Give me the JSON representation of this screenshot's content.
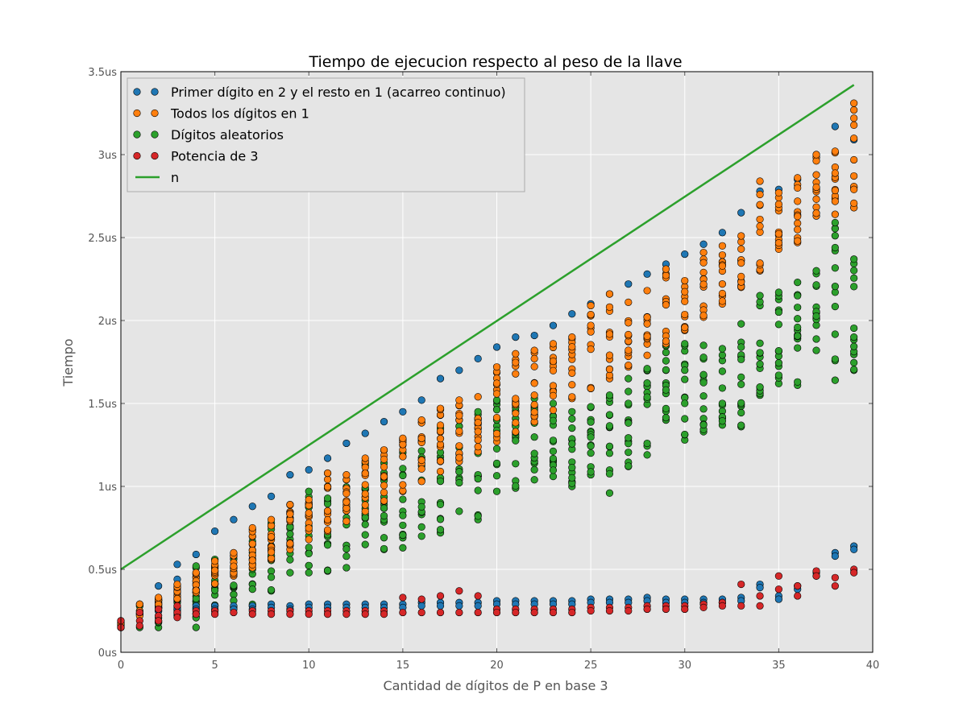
{
  "chart_data": {
    "type": "scatter",
    "title": "Tiempo de ejecucion respecto al peso de la llave",
    "xlabel": "Cantidad de dígitos de P en base 3",
    "ylabel": "Tiempo",
    "xlim": [
      0,
      40
    ],
    "ylim": [
      0,
      3.5
    ],
    "x_ticks": [
      0,
      5,
      10,
      15,
      20,
      25,
      30,
      35,
      40
    ],
    "x_tick_labels": [
      "0",
      "5",
      "10",
      "15",
      "20",
      "25",
      "30",
      "35",
      "40"
    ],
    "y_ticks": [
      0,
      0.5,
      1,
      1.5,
      2,
      2.5,
      3,
      3.5
    ],
    "y_tick_labels": [
      "0us",
      "0.5us",
      "1us",
      "1.5us",
      "2us",
      "2.5us",
      "3us",
      "3.5us"
    ],
    "grid": true,
    "legend_position": "top-left",
    "background_color": "#e5e5e5",
    "series": [
      {
        "name": "Primer dígito en 2 y el resto en 1 (acarreo continuo)",
        "color": "#1f77b4",
        "marker": "circle",
        "upper_points": [
          [
            0,
            0.18
          ],
          [
            1,
            0.29
          ],
          [
            2,
            0.4
          ],
          [
            3,
            0.44
          ],
          [
            3,
            0.53
          ],
          [
            4,
            0.59
          ],
          [
            5,
            0.73
          ],
          [
            6,
            0.8
          ],
          [
            7,
            0.88
          ],
          [
            8,
            0.94
          ],
          [
            9,
            1.07
          ],
          [
            10,
            1.1
          ],
          [
            11,
            1.17
          ],
          [
            12,
            1.26
          ],
          [
            13,
            1.32
          ],
          [
            14,
            1.39
          ],
          [
            15,
            1.45
          ],
          [
            16,
            1.52
          ],
          [
            17,
            1.65
          ],
          [
            18,
            1.7
          ],
          [
            19,
            1.77
          ],
          [
            20,
            1.84
          ],
          [
            21,
            1.9
          ],
          [
            22,
            1.91
          ],
          [
            23,
            1.97
          ],
          [
            24,
            2.04
          ],
          [
            25,
            2.1
          ],
          [
            26,
            2.16
          ],
          [
            27,
            2.22
          ],
          [
            28,
            2.28
          ],
          [
            29,
            2.34
          ],
          [
            30,
            2.4
          ],
          [
            31,
            2.46
          ],
          [
            32,
            2.53
          ],
          [
            33,
            2.65
          ],
          [
            34,
            2.78
          ],
          [
            35,
            2.79
          ],
          [
            36,
            2.85
          ],
          [
            37,
            3.0
          ],
          [
            38,
            3.17
          ],
          [
            39,
            3.09
          ],
          [
            39,
            2.68
          ]
        ],
        "lower_points": [
          [
            0,
            0.17
          ],
          [
            1,
            0.25
          ],
          [
            2,
            0.27
          ],
          [
            3,
            0.28
          ],
          [
            4,
            0.28
          ],
          [
            5,
            0.28
          ],
          [
            6,
            0.28
          ],
          [
            7,
            0.28
          ],
          [
            8,
            0.29
          ],
          [
            9,
            0.28
          ],
          [
            10,
            0.29
          ],
          [
            11,
            0.29
          ],
          [
            12,
            0.29
          ],
          [
            13,
            0.29
          ],
          [
            14,
            0.29
          ],
          [
            15,
            0.29
          ],
          [
            16,
            0.3
          ],
          [
            17,
            0.3
          ],
          [
            18,
            0.3
          ],
          [
            19,
            0.3
          ],
          [
            20,
            0.31
          ],
          [
            21,
            0.31
          ],
          [
            22,
            0.31
          ],
          [
            23,
            0.31
          ],
          [
            24,
            0.31
          ],
          [
            25,
            0.32
          ],
          [
            26,
            0.32
          ],
          [
            27,
            0.32
          ],
          [
            28,
            0.33
          ],
          [
            29,
            0.32
          ],
          [
            30,
            0.32
          ],
          [
            31,
            0.32
          ],
          [
            32,
            0.32
          ],
          [
            33,
            0.33
          ],
          [
            34,
            0.41
          ],
          [
            35,
            0.34
          ],
          [
            36,
            0.4
          ],
          [
            37,
            0.48
          ],
          [
            38,
            0.6
          ],
          [
            39,
            0.64
          ]
        ]
      },
      {
        "name": "Todos los dígitos en 1",
        "color": "#ff7f0e",
        "marker": "circle",
        "points_min": [
          0.17,
          0.22,
          0.27,
          0.32,
          0.36,
          0.41,
          0.46,
          0.51,
          0.56,
          0.62,
          0.68,
          0.73,
          0.79,
          0.85,
          0.91,
          0.97,
          1.03,
          1.09,
          1.15,
          1.21,
          1.27,
          1.33,
          1.39,
          1.46,
          1.53,
          1.59,
          1.65,
          1.72,
          1.79,
          1.86,
          1.94,
          2.02,
          2.1,
          2.2,
          2.3,
          2.43,
          2.47,
          2.63,
          2.64,
          2.68
        ],
        "points_max": [
          0.19,
          0.29,
          0.33,
          0.41,
          0.48,
          0.55,
          0.6,
          0.75,
          0.8,
          0.89,
          0.92,
          1.08,
          1.07,
          1.17,
          1.22,
          1.29,
          1.4,
          1.47,
          1.52,
          1.54,
          1.72,
          1.8,
          1.82,
          1.86,
          1.9,
          2.09,
          2.16,
          2.11,
          2.18,
          2.31,
          2.24,
          2.41,
          2.45,
          2.51,
          2.84,
          2.77,
          2.86,
          3.0,
          3.02,
          3.31
        ]
      },
      {
        "name": "Dígitos aleatorios",
        "color": "#2ca02c",
        "marker": "circle",
        "points_min": [
          0.15,
          0.15,
          0.15,
          0.22,
          0.15,
          0.25,
          0.27,
          0.28,
          0.37,
          0.48,
          0.48,
          0.49,
          0.51,
          0.65,
          0.62,
          0.63,
          0.7,
          0.72,
          0.85,
          0.8,
          0.97,
          0.99,
          1.04,
          1.06,
          1.0,
          1.07,
          0.96,
          1.12,
          1.19,
          1.4,
          1.28,
          1.33,
          1.37,
          1.36,
          1.55,
          1.62,
          1.61,
          1.82,
          1.64,
          1.7
        ],
        "points_max": [
          0.18,
          0.28,
          0.32,
          0.33,
          0.52,
          0.56,
          0.58,
          0.74,
          0.78,
          0.89,
          0.97,
          1.0,
          1.04,
          1.14,
          1.14,
          1.25,
          1.28,
          1.35,
          1.4,
          1.45,
          1.52,
          1.5,
          1.53,
          1.5,
          1.45,
          1.48,
          1.55,
          1.65,
          1.71,
          1.85,
          1.86,
          1.85,
          1.83,
          1.98,
          2.15,
          2.17,
          2.23,
          2.3,
          2.59,
          2.37
        ]
      },
      {
        "name": "Potencia de 3",
        "color": "#d62728",
        "marker": "circle",
        "points": [
          [
            0,
            0.19
          ],
          [
            0,
            0.15
          ],
          [
            1,
            0.24
          ],
          [
            1,
            0.19
          ],
          [
            1,
            0.16
          ],
          [
            2,
            0.26
          ],
          [
            2,
            0.22
          ],
          [
            2,
            0.19
          ],
          [
            3,
            0.28
          ],
          [
            3,
            0.24
          ],
          [
            3,
            0.21
          ],
          [
            4,
            0.25
          ],
          [
            4,
            0.23
          ],
          [
            5,
            0.25
          ],
          [
            5,
            0.23
          ],
          [
            6,
            0.24
          ],
          [
            7,
            0.25
          ],
          [
            7,
            0.23
          ],
          [
            8,
            0.25
          ],
          [
            8,
            0.23
          ],
          [
            9,
            0.25
          ],
          [
            9,
            0.23
          ],
          [
            10,
            0.25
          ],
          [
            10,
            0.23
          ],
          [
            11,
            0.25
          ],
          [
            11,
            0.23
          ],
          [
            12,
            0.25
          ],
          [
            12,
            0.23
          ],
          [
            13,
            0.25
          ],
          [
            13,
            0.23
          ],
          [
            14,
            0.25
          ],
          [
            14,
            0.23
          ],
          [
            15,
            0.33
          ],
          [
            15,
            0.24
          ],
          [
            16,
            0.32
          ],
          [
            16,
            0.24
          ],
          [
            17,
            0.34
          ],
          [
            17,
            0.24
          ],
          [
            18,
            0.37
          ],
          [
            18,
            0.24
          ],
          [
            19,
            0.34
          ],
          [
            19,
            0.24
          ],
          [
            20,
            0.26
          ],
          [
            20,
            0.24
          ],
          [
            21,
            0.26
          ],
          [
            21,
            0.24
          ],
          [
            22,
            0.26
          ],
          [
            22,
            0.24
          ],
          [
            23,
            0.26
          ],
          [
            23,
            0.24
          ],
          [
            24,
            0.26
          ],
          [
            24,
            0.24
          ],
          [
            25,
            0.27
          ],
          [
            25,
            0.25
          ],
          [
            26,
            0.27
          ],
          [
            26,
            0.25
          ],
          [
            27,
            0.27
          ],
          [
            27,
            0.25
          ],
          [
            28,
            0.28
          ],
          [
            28,
            0.26
          ],
          [
            29,
            0.28
          ],
          [
            29,
            0.26
          ],
          [
            30,
            0.28
          ],
          [
            30,
            0.26
          ],
          [
            31,
            0.29
          ],
          [
            31,
            0.27
          ],
          [
            32,
            0.3
          ],
          [
            32,
            0.28
          ],
          [
            33,
            0.41
          ],
          [
            33,
            0.28
          ],
          [
            34,
            0.34
          ],
          [
            34,
            0.28
          ],
          [
            35,
            0.46
          ],
          [
            35,
            0.38
          ],
          [
            36,
            0.4
          ],
          [
            36,
            0.34
          ],
          [
            37,
            0.49
          ],
          [
            37,
            0.46
          ],
          [
            38,
            0.45
          ],
          [
            38,
            0.4
          ],
          [
            39,
            0.5
          ],
          [
            39,
            0.48
          ]
        ]
      },
      {
        "name": "n",
        "type": "line",
        "color": "#2ca02c",
        "x": [
          0,
          39
        ],
        "y": [
          0.5,
          3.42
        ]
      }
    ]
  }
}
